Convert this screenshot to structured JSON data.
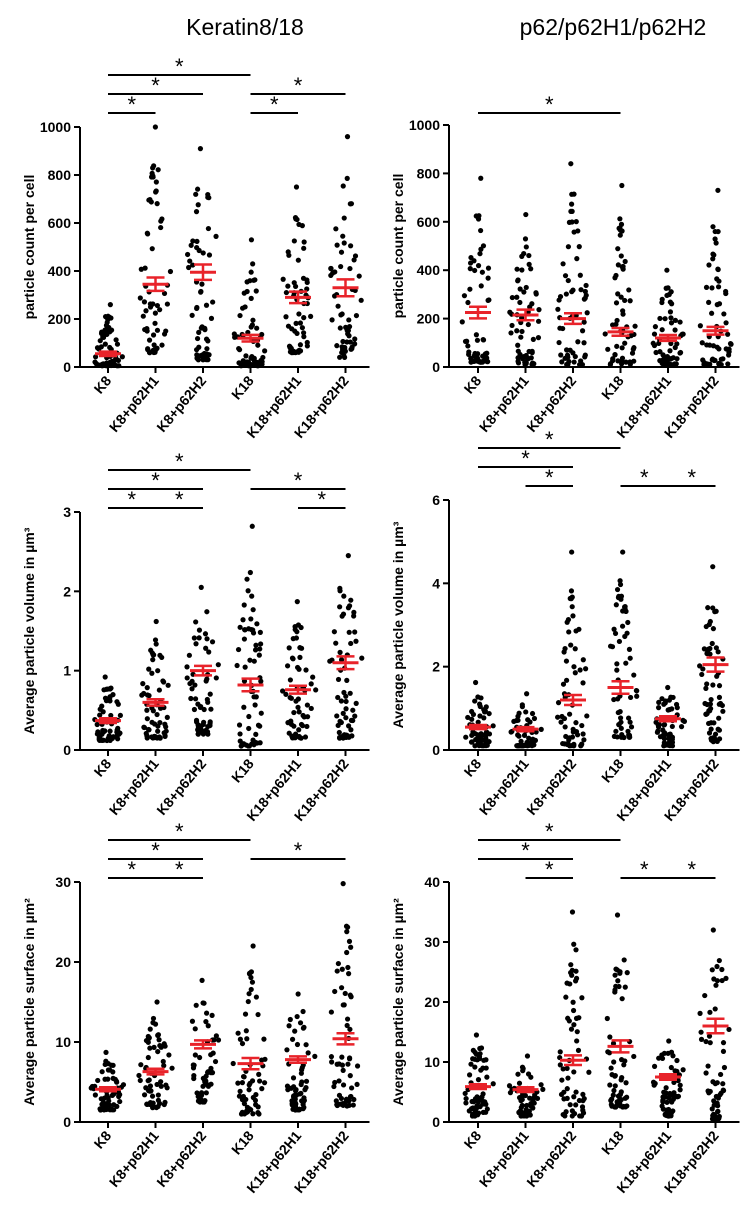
{
  "column_titles": [
    "Keratin8/18",
    "p62/p62H1/p62H2"
  ],
  "colors": {
    "dots": "#000000",
    "mean_bar": "#e8232a",
    "axis": "#000000"
  },
  "chart_data": [
    {
      "type": "scatter",
      "panel": "top-left",
      "title": "Keratin8/18",
      "ylabel": "particle count per cell",
      "ylim": [
        0,
        1000
      ],
      "yticks": [
        0,
        200,
        400,
        600,
        800,
        1000
      ],
      "categories": [
        "K8",
        "K8+p62H1",
        "K8+p62H2",
        "K18",
        "K18+p62H1",
        "K18+p62H2"
      ],
      "series": [
        {
          "name": "K8",
          "mean": 55,
          "sem": 9,
          "min": 5,
          "max": 260,
          "n": 60
        },
        {
          "name": "K8+p62H1",
          "mean": 345,
          "sem": 28,
          "min": 60,
          "max": 1000,
          "n": 60
        },
        {
          "name": "K8+p62H2",
          "mean": 395,
          "sem": 32,
          "min": 30,
          "max": 910,
          "n": 60
        },
        {
          "name": "K18",
          "mean": 120,
          "sem": 14,
          "min": 5,
          "max": 530,
          "n": 60
        },
        {
          "name": "K18+p62H1",
          "mean": 290,
          "sem": 24,
          "min": 60,
          "max": 750,
          "n": 60
        },
        {
          "name": "K18+p62H2",
          "mean": 330,
          "sem": 35,
          "min": 40,
          "max": 960,
          "n": 60
        }
      ],
      "significance": [
        {
          "from": "K8",
          "to": "K8+p62H1",
          "label": "*"
        },
        {
          "from": "K8",
          "to": "K8+p62H2",
          "label": "*"
        },
        {
          "from": "K8",
          "to": "K18",
          "label": "*"
        },
        {
          "from": "K18",
          "to": "K18+p62H1",
          "label": "*"
        },
        {
          "from": "K18",
          "to": "K18+p62H2",
          "label": "*"
        }
      ]
    },
    {
      "type": "scatter",
      "panel": "top-right",
      "title": "p62/p62H1/p62H2",
      "ylabel": "particle count per cell",
      "ylim": [
        0,
        1000
      ],
      "yticks": [
        0,
        200,
        400,
        600,
        800,
        1000
      ],
      "categories": [
        "K8",
        "K8+p62H1",
        "K8+p62H2",
        "K18",
        "K18+p62H1",
        "K18+p62H2"
      ],
      "series": [
        {
          "name": "K8",
          "mean": 225,
          "sem": 24,
          "min": 20,
          "max": 780,
          "n": 60
        },
        {
          "name": "K8+p62H1",
          "mean": 215,
          "sem": 22,
          "min": 10,
          "max": 630,
          "n": 60
        },
        {
          "name": "K8+p62H2",
          "mean": 200,
          "sem": 22,
          "min": 10,
          "max": 840,
          "n": 60
        },
        {
          "name": "K18",
          "mean": 145,
          "sem": 16,
          "min": 10,
          "max": 750,
          "n": 60
        },
        {
          "name": "K18+p62H1",
          "mean": 120,
          "sem": 12,
          "min": 10,
          "max": 400,
          "n": 60
        },
        {
          "name": "K18+p62H2",
          "mean": 150,
          "sem": 16,
          "min": 10,
          "max": 730,
          "n": 60
        }
      ],
      "significance": [
        {
          "from": "K8",
          "to": "K18",
          "label": "*"
        }
      ]
    },
    {
      "type": "scatter",
      "panel": "middle-left",
      "ylabel": "Average particle volume in µm³",
      "ylim": [
        0,
        3
      ],
      "yticks": [
        0,
        1,
        2,
        3
      ],
      "categories": [
        "K8",
        "K8+p62H1",
        "K8+p62H2",
        "K18",
        "K18+p62H1",
        "K18+p62H2"
      ],
      "series": [
        {
          "name": "K8",
          "mean": 0.37,
          "sem": 0.03,
          "min": 0.12,
          "max": 0.92,
          "n": 60
        },
        {
          "name": "K8+p62H1",
          "mean": 0.6,
          "sem": 0.04,
          "min": 0.15,
          "max": 1.62,
          "n": 60
        },
        {
          "name": "K8+p62H2",
          "mean": 1.0,
          "sem": 0.06,
          "min": 0.2,
          "max": 2.05,
          "n": 60
        },
        {
          "name": "K18",
          "mean": 0.82,
          "sem": 0.08,
          "min": 0.05,
          "max": 2.82,
          "n": 60
        },
        {
          "name": "K18+p62H1",
          "mean": 0.76,
          "sem": 0.05,
          "min": 0.15,
          "max": 1.87,
          "n": 60
        },
        {
          "name": "K18+p62H2",
          "mean": 1.1,
          "sem": 0.08,
          "min": 0.15,
          "max": 2.45,
          "n": 60
        }
      ],
      "significance": [
        {
          "from": "K8",
          "to": "K8+p62H1",
          "label": "*"
        },
        {
          "from": "K8+p62H1",
          "to": "K8+p62H2",
          "label": "*"
        },
        {
          "from": "K8",
          "to": "K8+p62H2",
          "label": "*"
        },
        {
          "from": "K8",
          "to": "K18",
          "label": "*"
        },
        {
          "from": "K18",
          "to": "K18+p62H2",
          "label": "*"
        },
        {
          "from": "K18+p62H1",
          "to": "K18+p62H2",
          "label": "*"
        }
      ]
    },
    {
      "type": "scatter",
      "panel": "middle-right",
      "ylabel": "Average particle volume in µm³",
      "ylim": [
        0,
        6
      ],
      "yticks": [
        0,
        2,
        4,
        6
      ],
      "categories": [
        "K8",
        "K8+p62H1",
        "K8+p62H2",
        "K18",
        "K18+p62H1",
        "K18+p62H2"
      ],
      "series": [
        {
          "name": "K8",
          "mean": 0.55,
          "sem": 0.05,
          "min": 0.1,
          "max": 1.62,
          "n": 60
        },
        {
          "name": "K8+p62H1",
          "mean": 0.5,
          "sem": 0.05,
          "min": 0.1,
          "max": 1.35,
          "n": 60
        },
        {
          "name": "K8+p62H2",
          "mean": 1.2,
          "sem": 0.12,
          "min": 0.1,
          "max": 4.75,
          "n": 60
        },
        {
          "name": "K18",
          "mean": 1.5,
          "sem": 0.15,
          "min": 0.3,
          "max": 4.75,
          "n": 60
        },
        {
          "name": "K18+p62H1",
          "mean": 0.75,
          "sem": 0.06,
          "min": 0.1,
          "max": 1.5,
          "n": 60
        },
        {
          "name": "K18+p62H2",
          "mean": 2.05,
          "sem": 0.17,
          "min": 0.2,
          "max": 4.4,
          "n": 60
        }
      ],
      "significance": [
        {
          "from": "K8",
          "to": "K8+p62H2",
          "label": "*"
        },
        {
          "from": "K8+p62H1",
          "to": "K8+p62H2",
          "label": "*"
        },
        {
          "from": "K8",
          "to": "K18",
          "label": "*"
        },
        {
          "from": "K18",
          "to": "K18+p62H1",
          "label": "*"
        },
        {
          "from": "K18+p62H1",
          "to": "K18+p62H2",
          "label": "*"
        }
      ]
    },
    {
      "type": "scatter",
      "panel": "bottom-left",
      "ylabel": "Average particle surface in µm²",
      "ylim": [
        0,
        30
      ],
      "yticks": [
        0,
        10,
        20,
        30
      ],
      "categories": [
        "K8",
        "K8+p62H1",
        "K8+p62H2",
        "K18",
        "K18+p62H1",
        "K18+p62H2"
      ],
      "series": [
        {
          "name": "K8",
          "mean": 4.1,
          "sem": 0.25,
          "min": 1.5,
          "max": 8.7,
          "n": 60
        },
        {
          "name": "K8+p62H1",
          "mean": 6.3,
          "sem": 0.35,
          "min": 1.8,
          "max": 15,
          "n": 60
        },
        {
          "name": "K8+p62H2",
          "mean": 9.7,
          "sem": 0.5,
          "min": 2.5,
          "max": 17.7,
          "n": 60
        },
        {
          "name": "K18",
          "mean": 7.3,
          "sem": 0.7,
          "min": 1.0,
          "max": 22,
          "n": 60
        },
        {
          "name": "K18+p62H1",
          "mean": 7.8,
          "sem": 0.4,
          "min": 1.5,
          "max": 16,
          "n": 60
        },
        {
          "name": "K18+p62H2",
          "mean": 10.4,
          "sem": 0.7,
          "min": 2.0,
          "max": 29.8,
          "n": 60
        }
      ],
      "significance": [
        {
          "from": "K8",
          "to": "K8+p62H1",
          "label": "*"
        },
        {
          "from": "K8+p62H1",
          "to": "K8+p62H2",
          "label": "*"
        },
        {
          "from": "K8",
          "to": "K8+p62H2",
          "label": "*"
        },
        {
          "from": "K8",
          "to": "K18",
          "label": "*"
        },
        {
          "from": "K18",
          "to": "K18+p62H2",
          "label": "*"
        }
      ]
    },
    {
      "type": "scatter",
      "panel": "bottom-right",
      "ylabel": "Average particle surface in µm²",
      "ylim": [
        0,
        40
      ],
      "yticks": [
        0,
        10,
        20,
        30,
        40
      ],
      "categories": [
        "K8",
        "K8+p62H1",
        "K8+p62H2",
        "K18",
        "K18+p62H1",
        "K18+p62H2"
      ],
      "series": [
        {
          "name": "K8",
          "mean": 5.9,
          "sem": 0.4,
          "min": 1.0,
          "max": 14.5,
          "n": 60
        },
        {
          "name": "K8+p62H1",
          "mean": 5.4,
          "sem": 0.4,
          "min": 1.0,
          "max": 11,
          "n": 60
        },
        {
          "name": "K8+p62H2",
          "mean": 10.3,
          "sem": 0.8,
          "min": 1.0,
          "max": 35,
          "n": 60
        },
        {
          "name": "K18",
          "mean": 12.6,
          "sem": 1.0,
          "min": 2.5,
          "max": 34.5,
          "n": 60
        },
        {
          "name": "K18+p62H1",
          "mean": 7.5,
          "sem": 0.45,
          "min": 1.0,
          "max": 13.5,
          "n": 60
        },
        {
          "name": "K18+p62H2",
          "mean": 16.0,
          "sem": 1.2,
          "min": 0.5,
          "max": 32,
          "n": 60
        }
      ],
      "significance": [
        {
          "from": "K8",
          "to": "K8+p62H2",
          "label": "*"
        },
        {
          "from": "K8+p62H1",
          "to": "K8+p62H2",
          "label": "*"
        },
        {
          "from": "K8",
          "to": "K18",
          "label": "*"
        },
        {
          "from": "K18",
          "to": "K18+p62H1",
          "label": "*"
        },
        {
          "from": "K18+p62H1",
          "to": "K18+p62H2",
          "label": "*"
        }
      ]
    }
  ]
}
